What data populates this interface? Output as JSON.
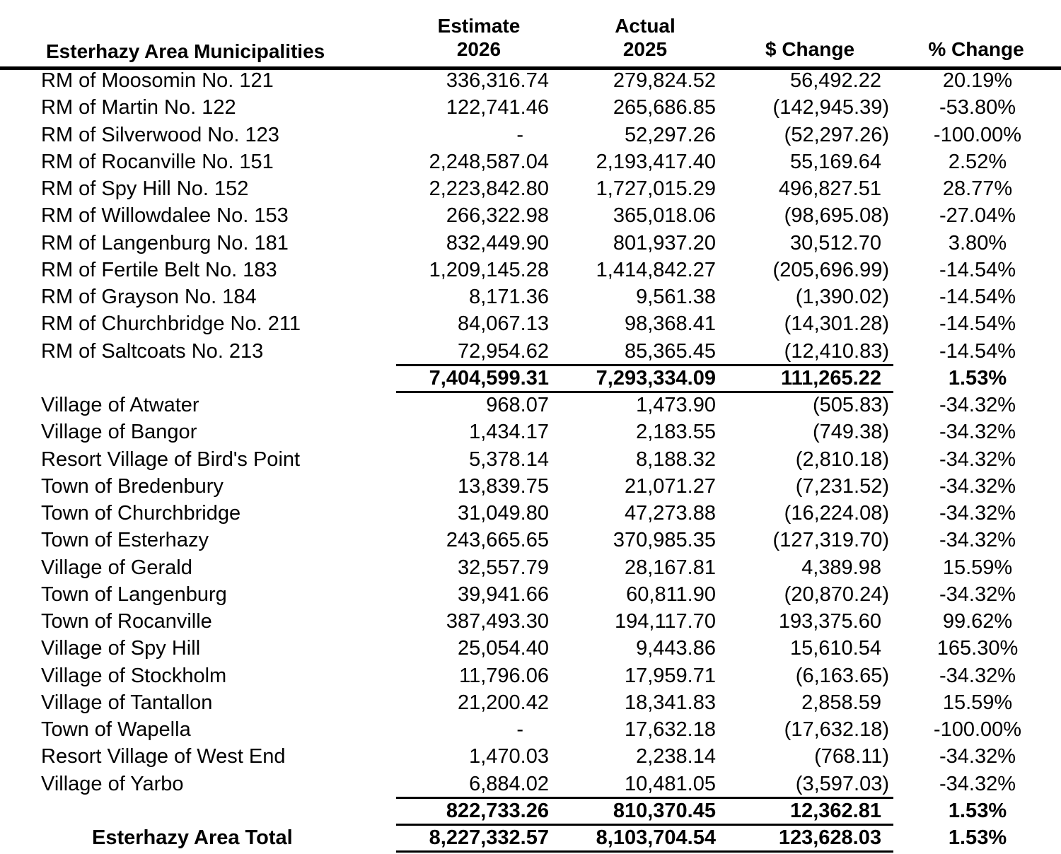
{
  "header": {
    "name_col": "Esterhazy Area Municipalities",
    "estimate_l1": "Estimate",
    "estimate_l2": "2026",
    "actual_l1": "Actual",
    "actual_l2": "2025",
    "dollar_change": "$ Change",
    "pct_change": "% Change"
  },
  "rows": [
    {
      "name": "RM of Moosomin No. 121",
      "est": "336,316.74",
      "act": "279,824.52",
      "chg": "56,492.22",
      "pct": "20.19%"
    },
    {
      "name": "RM of Martin No. 122",
      "est": "122,741.46",
      "act": "265,686.85",
      "chg": "(142,945.39)",
      "pct": "-53.80%"
    },
    {
      "name": "RM of Silverwood No. 123",
      "est": "-",
      "act": "52,297.26",
      "chg": "(52,297.26)",
      "pct": "-100.00%"
    },
    {
      "name": "RM of Rocanville No. 151",
      "est": "2,248,587.04",
      "act": "2,193,417.40",
      "chg": "55,169.64",
      "pct": "2.52%"
    },
    {
      "name": "RM of Spy Hill No. 152",
      "est": "2,223,842.80",
      "act": "1,727,015.29",
      "chg": "496,827.51",
      "pct": "28.77%"
    },
    {
      "name": "RM of Willowdalee No. 153",
      "est": "266,322.98",
      "act": "365,018.06",
      "chg": "(98,695.08)",
      "pct": "-27.04%"
    },
    {
      "name": "RM of Langenburg No. 181",
      "est": "832,449.90",
      "act": "801,937.20",
      "chg": "30,512.70",
      "pct": "3.80%"
    },
    {
      "name": "RM of Fertile Belt No. 183",
      "est": "1,209,145.28",
      "act": "1,414,842.27",
      "chg": "(205,696.99)",
      "pct": "-14.54%"
    },
    {
      "name": "RM of Grayson No. 184",
      "est": "8,171.36",
      "act": "9,561.38",
      "chg": "(1,390.02)",
      "pct": "-14.54%"
    },
    {
      "name": "RM of Churchbridge No. 211",
      "est": "84,067.13",
      "act": "98,368.41",
      "chg": "(14,301.28)",
      "pct": "-14.54%"
    },
    {
      "name": "RM of Saltcoats No. 213",
      "est": "72,954.62",
      "act": "85,365.45",
      "chg": "(12,410.83)",
      "pct": "-14.54%"
    },
    {
      "name": "",
      "est": "7,404,599.31",
      "act": "7,293,334.09",
      "chg": "111,265.22",
      "pct": "1.53%",
      "bold": true
    },
    {
      "name": "Village of Atwater",
      "est": "968.07",
      "act": "1,473.90",
      "chg": "(505.83)",
      "pct": "-34.32%"
    },
    {
      "name": "Village of Bangor",
      "est": "1,434.17",
      "act": "2,183.55",
      "chg": "(749.38)",
      "pct": "-34.32%"
    },
    {
      "name": "Resort Village of Bird's Point",
      "est": "5,378.14",
      "act": "8,188.32",
      "chg": "(2,810.18)",
      "pct": "-34.32%"
    },
    {
      "name": "Town of Bredenbury",
      "est": "13,839.75",
      "act": "21,071.27",
      "chg": "(7,231.52)",
      "pct": "-34.32%"
    },
    {
      "name": "Town of Churchbridge",
      "est": "31,049.80",
      "act": "47,273.88",
      "chg": "(16,224.08)",
      "pct": "-34.32%"
    },
    {
      "name": "Town of Esterhazy",
      "est": "243,665.65",
      "act": "370,985.35",
      "chg": "(127,319.70)",
      "pct": "-34.32%"
    },
    {
      "name": "Village of Gerald",
      "est": "32,557.79",
      "act": "28,167.81",
      "chg": "4,389.98",
      "pct": "15.59%"
    },
    {
      "name": "Town of Langenburg",
      "est": "39,941.66",
      "act": "60,811.90",
      "chg": "(20,870.24)",
      "pct": "-34.32%"
    },
    {
      "name": "Town of Rocanville",
      "est": "387,493.30",
      "act": "194,117.70",
      "chg": "193,375.60",
      "pct": "99.62%"
    },
    {
      "name": "Village of Spy Hill",
      "est": "25,054.40",
      "act": "9,443.86",
      "chg": "15,610.54",
      "pct": "165.30%"
    },
    {
      "name": "Village of Stockholm",
      "est": "11,796.06",
      "act": "17,959.71",
      "chg": "(6,163.65)",
      "pct": "-34.32%"
    },
    {
      "name": "Village of Tantallon",
      "est": "21,200.42",
      "act": "18,341.83",
      "chg": "2,858.59",
      "pct": "15.59%"
    },
    {
      "name": "Town of Wapella",
      "est": "-",
      "act": "17,632.18",
      "chg": "(17,632.18)",
      "pct": "-100.00%"
    },
    {
      "name": "Resort Village of West End",
      "est": "1,470.03",
      "act": "2,238.14",
      "chg": "(768.11)",
      "pct": "-34.32%"
    },
    {
      "name": "Village of Yarbo",
      "est": "6,884.02",
      "act": "10,481.05",
      "chg": "(3,597.03)",
      "pct": "-34.32%"
    },
    {
      "name": "",
      "est": "822,733.26",
      "act": "810,370.45",
      "chg": "12,362.81",
      "pct": "1.53%",
      "bold": true
    },
    {
      "name": "Esterhazy Area Total",
      "est": "8,227,332.57",
      "act": "8,103,704.54",
      "chg": "123,628.03",
      "pct": "1.53%",
      "bold": true,
      "total": true
    }
  ]
}
